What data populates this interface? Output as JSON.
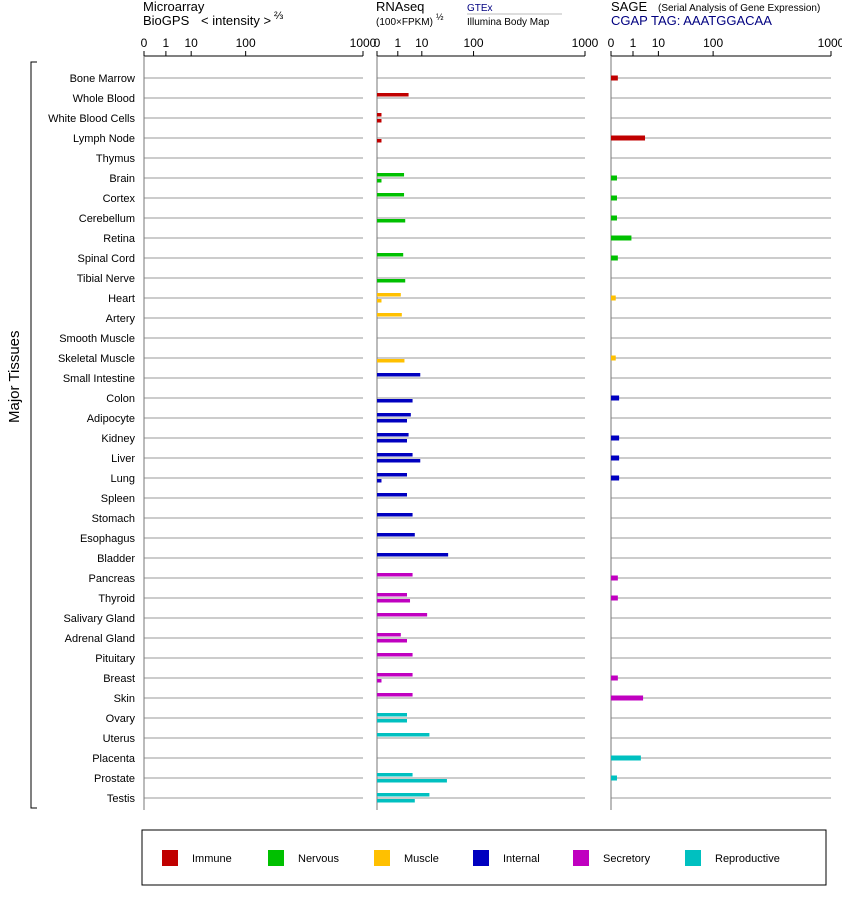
{
  "headers": {
    "microarray": {
      "line1": "Microarray",
      "line2": "BioGPS",
      "scale_label": "< intensity >",
      "scale_exp": "⅔"
    },
    "rnaseq": {
      "line1": "RNAseq",
      "scale_label": "(100×FPKM)",
      "scale_exp": "½",
      "source1": "GTEx",
      "source2": "Illumina Body Map"
    },
    "sage": {
      "line1": "SAGE",
      "desc": "(Serial Analysis of Gene Expression)",
      "tag": "CGAP  TAG: AAATGGACAA"
    }
  },
  "y_group_label": "Major Tissues",
  "legend": [
    {
      "label": "Immune",
      "color": "#c00000"
    },
    {
      "label": "Nervous",
      "color": "#00c000"
    },
    {
      "label": "Muscle",
      "color": "#ffc000"
    },
    {
      "label": "Internal",
      "color": "#0000c0"
    },
    {
      "label": "Secretory",
      "color": "#c000c0"
    },
    {
      "label": "Reproductive",
      "color": "#00c0c0"
    }
  ],
  "chart_data": {
    "type": "bar",
    "orientation": "horizontal",
    "scale": "power",
    "x_ticks": [
      0,
      1,
      10,
      100,
      1000
    ],
    "xlim": [
      0,
      1000
    ],
    "grid": true,
    "legend_position": "bottom",
    "categories": [
      "Bone Marrow",
      "Whole Blood",
      "White Blood Cells",
      "Lymph Node",
      "Thymus",
      "Brain",
      "Cortex",
      "Cerebellum",
      "Retina",
      "Spinal Cord",
      "Tibial Nerve",
      "Heart",
      "Artery",
      "Smooth Muscle",
      "Skeletal Muscle",
      "Small Intestine",
      "Colon",
      "Adipocyte",
      "Kidney",
      "Liver",
      "Lung",
      "Spleen",
      "Stomach",
      "Esophagus",
      "Bladder",
      "Pancreas",
      "Thyroid",
      "Salivary Gland",
      "Adrenal Gland",
      "Pituitary",
      "Breast",
      "Skin",
      "Ovary",
      "Uterus",
      "Placenta",
      "Prostate",
      "Testis"
    ],
    "groups": [
      "Immune",
      "Immune",
      "Immune",
      "Immune",
      "Immune",
      "Nervous",
      "Nervous",
      "Nervous",
      "Nervous",
      "Nervous",
      "Nervous",
      "Muscle",
      "Muscle",
      "Muscle",
      "Muscle",
      "Internal",
      "Internal",
      "Internal",
      "Internal",
      "Internal",
      "Internal",
      "Internal",
      "Internal",
      "Internal",
      "Internal",
      "Secretory",
      "Secretory",
      "Secretory",
      "Secretory",
      "Secretory",
      "Secretory",
      "Secretory",
      "Reproductive",
      "Reproductive",
      "Reproductive",
      "Reproductive",
      "Reproductive"
    ],
    "panels": [
      {
        "name": "Microarray",
        "values": [
          null,
          null,
          null,
          null,
          null,
          null,
          null,
          null,
          null,
          null,
          null,
          null,
          null,
          null,
          null,
          null,
          null,
          null,
          null,
          null,
          null,
          null,
          null,
          null,
          null,
          null,
          null,
          null,
          null,
          null,
          null,
          null,
          null,
          null,
          null,
          null,
          null
        ]
      },
      {
        "name": "RNAseq",
        "gtex": [
          null,
          3.5,
          0.01,
          null,
          null,
          2.2,
          2.2,
          null,
          null,
          2,
          null,
          1.5,
          1.7,
          null,
          null,
          9,
          null,
          4.3,
          3.5,
          5,
          3,
          3,
          5,
          6,
          40,
          5,
          3,
          14,
          1.5,
          5,
          5,
          5,
          3,
          16,
          null,
          5,
          16
        ],
        "ibm": [
          null,
          null,
          0.01,
          0.01,
          null,
          0.01,
          null,
          2.5,
          null,
          null,
          2.5,
          0.01,
          null,
          null,
          2.3,
          null,
          5,
          3,
          3,
          9,
          0.01,
          null,
          null,
          null,
          null,
          null,
          4,
          null,
          3,
          null,
          0.01,
          null,
          3,
          null,
          null,
          38,
          6
        ]
      },
      {
        "name": "SAGE",
        "values": [
          0.03,
          null,
          null,
          3.7,
          null,
          0.02,
          0.02,
          0.02,
          0.8,
          0.03,
          null,
          0.01,
          null,
          null,
          0.01,
          null,
          0.05,
          null,
          0.05,
          0.05,
          0.05,
          null,
          null,
          null,
          null,
          0.03,
          0.03,
          null,
          null,
          null,
          0.03,
          3.1,
          null,
          null,
          2.5,
          0.02,
          null
        ]
      }
    ]
  }
}
